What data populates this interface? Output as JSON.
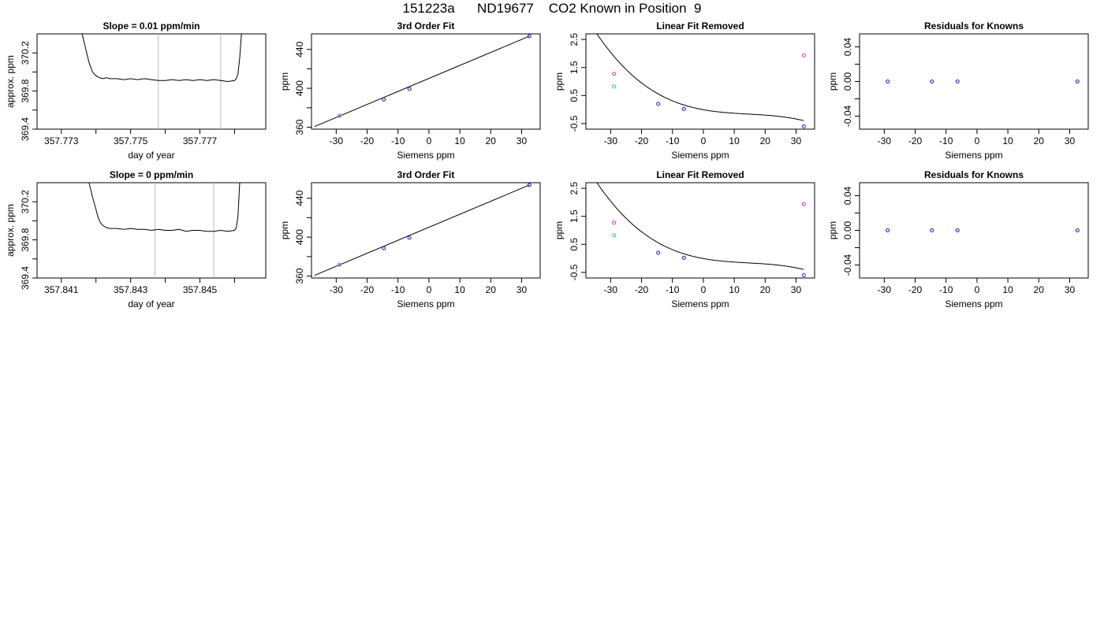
{
  "figure_title": "151223a      ND19677    CO2 Known in Position  9",
  "chart_data": [
    {
      "type": "line",
      "title": "Slope =  0.01  ppm/min",
      "xlabel": "day of year",
      "ylabel": "approx. ppm",
      "xlim": [
        357.7723,
        357.7789
      ],
      "ylim": [
        369.4,
        370.4
      ],
      "xticks": [
        357.773,
        357.774,
        357.775,
        357.776,
        357.777,
        357.778
      ],
      "xtick_labels": [
        "357.773",
        "",
        "357.775",
        "",
        "357.777",
        ""
      ],
      "yticks": [
        369.4,
        369.6,
        369.8,
        370.0,
        370.2
      ],
      "ytick_labels": [
        "369.4",
        "",
        "369.8",
        "",
        "370.2"
      ],
      "vlines": [
        357.7758,
        357.7776
      ],
      "series": [
        {
          "x": [
            357.7736,
            357.7737,
            357.7738,
            357.77385,
            357.7739,
            357.77395,
            357.774,
            357.77405,
            357.7741,
            357.7742,
            357.7743,
            357.7744,
            357.7746,
            357.7748,
            357.775,
            357.7752,
            357.7754,
            357.7756,
            357.7758,
            357.776,
            357.7762,
            357.7764,
            357.7766,
            357.7768,
            357.777,
            357.7772,
            357.7774,
            357.7776,
            357.7778,
            357.778,
            357.77805,
            357.7781,
            357.77815,
            357.7782
          ],
          "y": [
            370.4,
            370.25,
            370.1,
            370.05,
            370.0,
            369.98,
            369.96,
            369.95,
            369.94,
            369.93,
            369.94,
            369.93,
            369.93,
            369.92,
            369.93,
            369.92,
            369.93,
            369.92,
            369.91,
            369.91,
            369.92,
            369.91,
            369.92,
            369.91,
            369.92,
            369.91,
            369.92,
            369.91,
            369.9,
            369.91,
            369.93,
            369.98,
            370.15,
            370.4
          ]
        }
      ]
    },
    {
      "type": "scatter",
      "title": "3rd Order Fit",
      "xlabel": "Siemens ppm",
      "ylabel": "ppm",
      "xlim": [
        -38,
        36
      ],
      "ylim": [
        358,
        456
      ],
      "xticks": [
        -30,
        -20,
        -10,
        0,
        10,
        20,
        30
      ],
      "xtick_labels": [
        "-30",
        "-20",
        "-10",
        "0",
        "10",
        "20",
        "30"
      ],
      "yticks": [
        360,
        380,
        400,
        420,
        440
      ],
      "ytick_labels": [
        "360",
        "",
        "400",
        "",
        "440"
      ],
      "fit_line": {
        "x": [
          -37,
          32.5
        ],
        "y": [
          360.7,
          453.6
        ]
      },
      "points": [
        {
          "x": -28.9,
          "y": 371.8,
          "color": "#cc33cc"
        },
        {
          "x": -28.9,
          "y": 371.5,
          "color": "#5ab4e6"
        },
        {
          "x": -14.6,
          "y": 388.6,
          "color": "#cc33cc"
        },
        {
          "x": -14.6,
          "y": 388.6,
          "color": "#2233cc"
        },
        {
          "x": -6.3,
          "y": 399.4,
          "color": "#cc33cc"
        },
        {
          "x": -6.3,
          "y": 399.4,
          "color": "#2233cc"
        },
        {
          "x": 32.5,
          "y": 453.6,
          "color": "#cc33cc"
        },
        {
          "x": 32.5,
          "y": 453.6,
          "color": "#2233cc"
        }
      ]
    },
    {
      "type": "scatter",
      "title": "Linear Fit Removed",
      "xlabel": "Siemens ppm",
      "ylabel": "ppm",
      "xlim": [
        -38,
        36
      ],
      "ylim": [
        -0.7,
        2.7
      ],
      "xticks": [
        -30,
        -20,
        -10,
        0,
        10,
        20,
        30
      ],
      "xtick_labels": [
        "-30",
        "-20",
        "-10",
        "0",
        "10",
        "20",
        "30"
      ],
      "yticks": [
        -0.5,
        0.5,
        1.5,
        2.5
      ],
      "ytick_labels": [
        "-0.5",
        "0.5",
        "1.5",
        "2.5"
      ],
      "curve": {
        "x0": -37,
        "x1": 32.5,
        "coef": [
          -0.006,
          -0.02,
          0.000953,
          -2.18e-05
        ]
      },
      "points": [
        {
          "x": -28.9,
          "y": 1.27,
          "color": "#cc33cc"
        },
        {
          "x": -28.9,
          "y": 0.82,
          "color": "#22bbdd"
        },
        {
          "x": -14.6,
          "y": 0.2,
          "color": "#cc33cc"
        },
        {
          "x": -14.6,
          "y": 0.2,
          "color": "#2233cc"
        },
        {
          "x": -6.3,
          "y": 0.02,
          "color": "#cc33cc"
        },
        {
          "x": -6.3,
          "y": 0.02,
          "color": "#2233cc"
        },
        {
          "x": 32.5,
          "y": 1.93,
          "color": "#cc33cc"
        },
        {
          "x": 32.5,
          "y": -0.6,
          "color": "#2233cc"
        }
      ]
    },
    {
      "type": "scatter",
      "title": "Residuals for Knowns",
      "xlabel": "Siemens ppm",
      "ylabel": "ppm",
      "xlim": [
        -38,
        36
      ],
      "ylim": [
        -0.055,
        0.055
      ],
      "xticks": [
        -30,
        -20,
        -10,
        0,
        10,
        20,
        30
      ],
      "xtick_labels": [
        "-30",
        "-20",
        "-10",
        "0",
        "10",
        "20",
        "30"
      ],
      "yticks": [
        -0.04,
        -0.02,
        0.0,
        0.02,
        0.04
      ],
      "ytick_labels": [
        "-0.04",
        "",
        "0.00",
        "",
        "0.04"
      ],
      "points": [
        {
          "x": -28.9,
          "y": 0,
          "color": "#cc33cc"
        },
        {
          "x": -28.9,
          "y": 0,
          "color": "#2233cc"
        },
        {
          "x": -14.6,
          "y": 0,
          "color": "#cc33cc"
        },
        {
          "x": -14.6,
          "y": 0,
          "color": "#2233cc"
        },
        {
          "x": -6.3,
          "y": 0,
          "color": "#cc33cc"
        },
        {
          "x": -6.3,
          "y": 0,
          "color": "#2233cc"
        },
        {
          "x": 32.5,
          "y": 0,
          "color": "#cc33cc"
        },
        {
          "x": 32.5,
          "y": 0,
          "color": "#2233cc"
        }
      ]
    },
    {
      "type": "line",
      "title": "Slope =  0  ppm/min",
      "xlabel": "day of year",
      "ylabel": "approx. ppm",
      "xlim": [
        357.8403,
        357.8469
      ],
      "ylim": [
        369.4,
        370.4
      ],
      "xticks": [
        357.841,
        357.842,
        357.843,
        357.844,
        357.845,
        357.846
      ],
      "xtick_labels": [
        "357.841",
        "",
        "357.843",
        "",
        "357.845",
        ""
      ],
      "yticks": [
        369.4,
        369.6,
        369.8,
        370.0,
        370.2
      ],
      "ytick_labels": [
        "369.4",
        "",
        "369.8",
        "",
        "370.2"
      ],
      "vlines": [
        357.8437,
        357.8454
      ],
      "series": [
        {
          "x": [
            357.8418,
            357.8419,
            357.842,
            357.84205,
            357.8421,
            357.84215,
            357.8422,
            357.8423,
            357.8424,
            357.8426,
            357.8428,
            357.843,
            357.8432,
            357.8434,
            357.8436,
            357.8438,
            357.844,
            357.8442,
            357.8444,
            357.8446,
            357.8448,
            357.845,
            357.8452,
            357.8454,
            357.8456,
            357.8458,
            357.846,
            357.84605,
            357.8461,
            357.84615
          ],
          "y": [
            370.4,
            370.25,
            370.12,
            370.05,
            370.0,
            369.97,
            369.95,
            369.93,
            369.92,
            369.92,
            369.91,
            369.92,
            369.91,
            369.91,
            369.9,
            369.91,
            369.9,
            369.9,
            369.91,
            369.89,
            369.9,
            369.9,
            369.89,
            369.89,
            369.9,
            369.89,
            369.9,
            369.93,
            370.05,
            370.4
          ]
        }
      ]
    },
    {
      "type": "scatter",
      "title": "3rd Order Fit",
      "xlabel": "Siemens ppm",
      "ylabel": "ppm",
      "xlim": [
        -38,
        36
      ],
      "ylim": [
        358,
        456
      ],
      "xticks": [
        -30,
        -20,
        -10,
        0,
        10,
        20,
        30
      ],
      "xtick_labels": [
        "-30",
        "-20",
        "-10",
        "0",
        "10",
        "20",
        "30"
      ],
      "yticks": [
        360,
        380,
        400,
        420,
        440
      ],
      "ytick_labels": [
        "360",
        "",
        "400",
        "",
        "440"
      ],
      "fit_line": {
        "x": [
          -37,
          32.5
        ],
        "y": [
          360.7,
          453.6
        ]
      },
      "points": [
        {
          "x": -28.9,
          "y": 371.8,
          "color": "#cc33cc"
        },
        {
          "x": -28.9,
          "y": 371.5,
          "color": "#5ab4e6"
        },
        {
          "x": -14.6,
          "y": 388.6,
          "color": "#cc33cc"
        },
        {
          "x": -14.6,
          "y": 388.6,
          "color": "#2233cc"
        },
        {
          "x": -6.3,
          "y": 399.4,
          "color": "#cc33cc"
        },
        {
          "x": -6.3,
          "y": 399.4,
          "color": "#2233cc"
        },
        {
          "x": 32.5,
          "y": 453.6,
          "color": "#cc33cc"
        },
        {
          "x": 32.5,
          "y": 453.6,
          "color": "#2233cc"
        }
      ]
    },
    {
      "type": "scatter",
      "title": "Linear Fit Removed",
      "xlabel": "Siemens ppm",
      "ylabel": "ppm",
      "xlim": [
        -38,
        36
      ],
      "ylim": [
        -0.7,
        2.7
      ],
      "xticks": [
        -30,
        -20,
        -10,
        0,
        10,
        20,
        30
      ],
      "xtick_labels": [
        "-30",
        "-20",
        "-10",
        "0",
        "10",
        "20",
        "30"
      ],
      "yticks": [
        -0.5,
        0.5,
        1.5,
        2.5
      ],
      "ytick_labels": [
        "-0.5",
        "0.5",
        "1.5",
        "2.5"
      ],
      "curve": {
        "x0": -37,
        "x1": 32.5,
        "coef": [
          -0.006,
          -0.02,
          0.000953,
          -2.18e-05
        ]
      },
      "points": [
        {
          "x": -28.9,
          "y": 1.27,
          "color": "#cc33cc"
        },
        {
          "x": -28.9,
          "y": 0.82,
          "color": "#22bbdd"
        },
        {
          "x": -14.6,
          "y": 0.2,
          "color": "#cc33cc"
        },
        {
          "x": -14.6,
          "y": 0.2,
          "color": "#2233cc"
        },
        {
          "x": -6.3,
          "y": 0.02,
          "color": "#cc33cc"
        },
        {
          "x": -6.3,
          "y": 0.02,
          "color": "#2233cc"
        },
        {
          "x": 32.5,
          "y": 1.93,
          "color": "#cc33cc"
        },
        {
          "x": 32.5,
          "y": -0.6,
          "color": "#2233cc"
        }
      ]
    },
    {
      "type": "scatter",
      "title": "Residuals for Knowns",
      "xlabel": "Siemens ppm",
      "ylabel": "ppm",
      "xlim": [
        -38,
        36
      ],
      "ylim": [
        -0.055,
        0.055
      ],
      "xticks": [
        -30,
        -20,
        -10,
        0,
        10,
        20,
        30
      ],
      "xtick_labels": [
        "-30",
        "-20",
        "-10",
        "0",
        "10",
        "20",
        "30"
      ],
      "yticks": [
        -0.04,
        -0.02,
        0.0,
        0.02,
        0.04
      ],
      "ytick_labels": [
        "-0.04",
        "",
        "0.00",
        "",
        "0.04"
      ],
      "points": [
        {
          "x": -28.9,
          "y": 0,
          "color": "#cc33cc"
        },
        {
          "x": -28.9,
          "y": 0,
          "color": "#2233cc"
        },
        {
          "x": -14.6,
          "y": 0,
          "color": "#cc33cc"
        },
        {
          "x": -14.6,
          "y": 0,
          "color": "#2233cc"
        },
        {
          "x": -6.3,
          "y": 0,
          "color": "#cc33cc"
        },
        {
          "x": -6.3,
          "y": 0,
          "color": "#2233cc"
        },
        {
          "x": 32.5,
          "y": 0,
          "color": "#cc33cc"
        },
        {
          "x": 32.5,
          "y": 0,
          "color": "#2233cc"
        }
      ]
    }
  ]
}
